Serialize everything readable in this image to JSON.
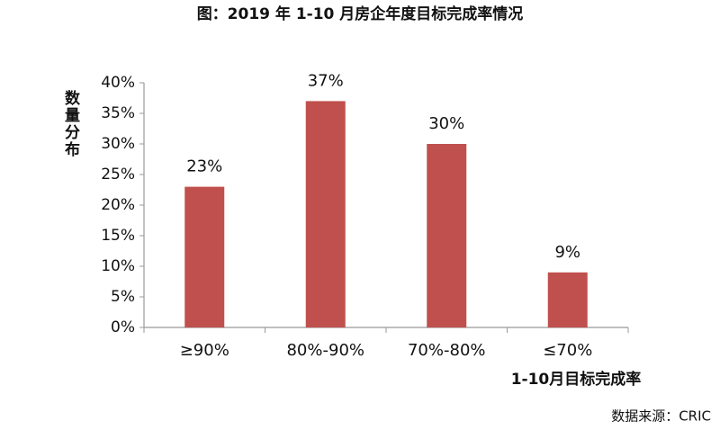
{
  "chart_data": {
    "type": "bar",
    "title": "图：2019 年 1-10 月房企年度目标完成率情况",
    "y_label": "数量分布",
    "x_label": "1-10月目标完成率",
    "source": "数据来源：CRIC",
    "categories": [
      "≥90%",
      "80%-90%",
      "70%-80%",
      "≤70%"
    ],
    "values": [
      23,
      37,
      30,
      9
    ],
    "value_labels": [
      "23%",
      "37%",
      "30%",
      "9%"
    ],
    "color": "#c0504d",
    "ylim": [
      0,
      40
    ],
    "yticks": [
      {
        "value": 0,
        "label": "0%"
      },
      {
        "value": 5,
        "label": "5%"
      },
      {
        "value": 10,
        "label": "10%"
      },
      {
        "value": 15,
        "label": "15%"
      },
      {
        "value": 20,
        "label": "20%"
      },
      {
        "value": 25,
        "label": "25%"
      },
      {
        "value": 30,
        "label": "30%"
      },
      {
        "value": 35,
        "label": "35%"
      },
      {
        "value": 40,
        "label": "40%"
      }
    ],
    "grid": false
  }
}
